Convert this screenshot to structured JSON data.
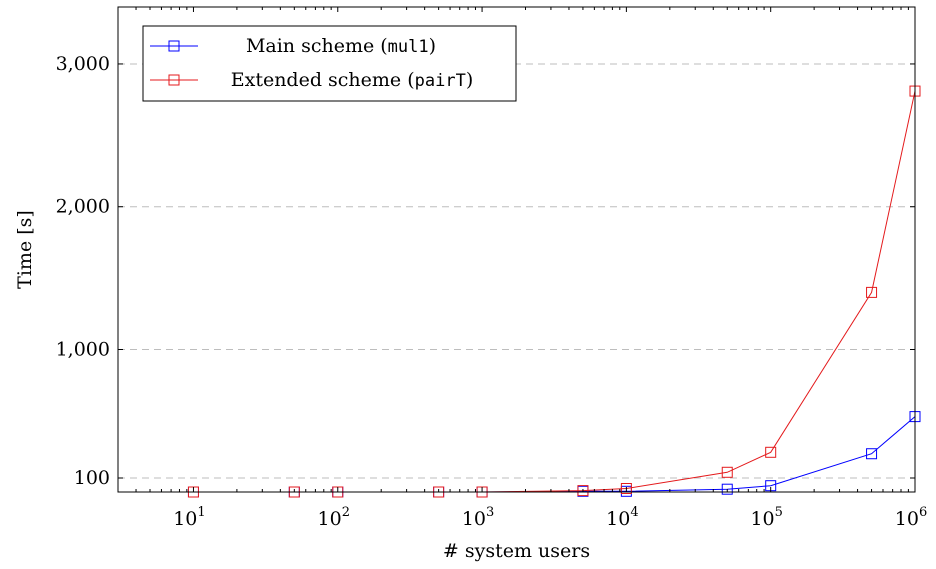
{
  "chart_data": {
    "type": "line",
    "title": "",
    "xlabel": "# system users",
    "ylabel": "Time [s]",
    "x_scale": "log",
    "xlim": [
      3,
      1000000
    ],
    "ylim": [
      0,
      3400
    ],
    "grid": "horizontal dashed",
    "legend_position": "top-left",
    "x_ticks": [
      {
        "value": 10,
        "base": "10",
        "exp": "1"
      },
      {
        "value": 100,
        "base": "10",
        "exp": "2"
      },
      {
        "value": 1000,
        "base": "10",
        "exp": "3"
      },
      {
        "value": 10000,
        "base": "10",
        "exp": "4"
      },
      {
        "value": 100000,
        "base": "10",
        "exp": "5"
      },
      {
        "value": 1000000,
        "base": "10",
        "exp": "6"
      }
    ],
    "y_ticks": [
      {
        "value": 100,
        "label": "100"
      },
      {
        "value": 1000,
        "label": "1,000"
      },
      {
        "value": 2000,
        "label": "2,000"
      },
      {
        "value": 3000,
        "label": "3,000"
      }
    ],
    "x": [
      10,
      50,
      100,
      500,
      1000,
      5000,
      10000,
      50000,
      100000,
      500000,
      1000000
    ],
    "series": [
      {
        "name": "Main scheme (mul1)",
        "name_prefix": "Main scheme (",
        "name_code": "mul1",
        "name_suffix": ")",
        "color": "#0000ff",
        "values": [
          0,
          0,
          0,
          0,
          0,
          5,
          5,
          20,
          45,
          270,
          530
        ]
      },
      {
        "name": "Extended scheme (pairT)",
        "name_prefix": "Extended scheme (",
        "name_code": "pairT",
        "name_suffix": ")",
        "color": "#e41a1c",
        "values": [
          0,
          0,
          0,
          0,
          0,
          10,
          25,
          140,
          280,
          1400,
          2810
        ]
      }
    ]
  }
}
